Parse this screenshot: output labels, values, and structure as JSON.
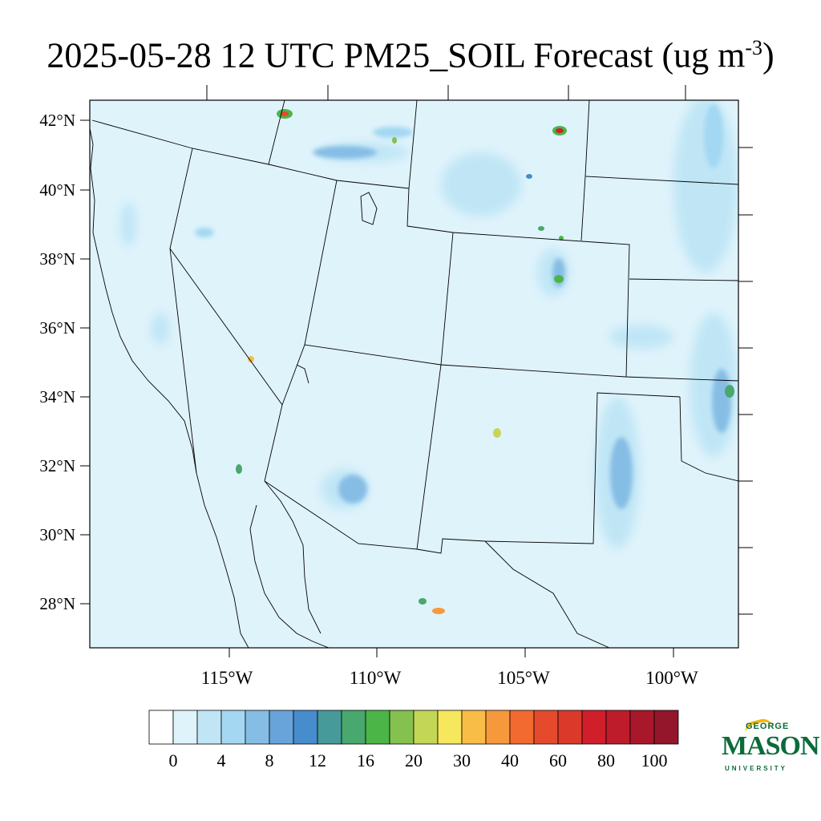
{
  "title": {
    "main": "2025-05-28 12 UTC PM25_SOIL Forecast (ug m",
    "exponent": "-3",
    "close": ")"
  },
  "map": {
    "lat_labels": [
      "42°N",
      "40°N",
      "38°N",
      "36°N",
      "34°N",
      "32°N",
      "30°N",
      "28°N"
    ],
    "lon_labels": [
      "115°W",
      "110°W",
      "105°W",
      "100°W"
    ],
    "background_color": "#dff3fb"
  },
  "colorbar": {
    "colors": [
      "#ffffff",
      "#dff3fb",
      "#c0e6f6",
      "#a3d7f2",
      "#85bde5",
      "#68a4da",
      "#478ccc",
      "#479a9a",
      "#48a86e",
      "#4bb548",
      "#85c14e",
      "#c4d656",
      "#f7e75c",
      "#f8bd47",
      "#f6993c",
      "#f26a2f",
      "#e64a2d",
      "#db3a2b",
      "#d01f2b",
      "#be1c2a",
      "#a8182a",
      "#93162a"
    ],
    "labels": [
      "0",
      "4",
      "8",
      "12",
      "16",
      "20",
      "30",
      "40",
      "60",
      "80",
      "100"
    ]
  },
  "logo": {
    "top": "GEORGE",
    "name": "MASON",
    "bottom": "UNIVERSITY"
  }
}
